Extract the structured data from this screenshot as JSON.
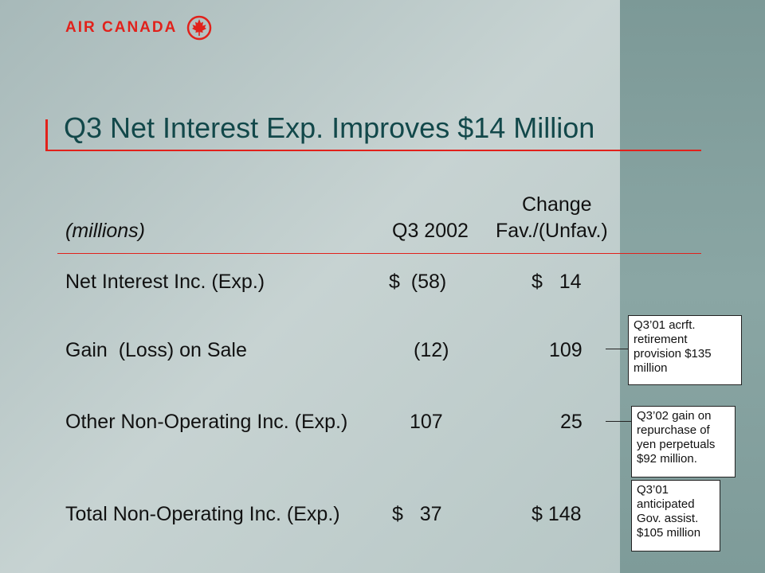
{
  "brand": {
    "name": "AIR CANADA"
  },
  "slide": {
    "title": "Q3 Net Interest Exp. Improves $14 Million"
  },
  "table": {
    "units_label": "(millions)",
    "col_q3": "Q3 2002",
    "col_change_line1": "Change",
    "col_change_line2": "Fav./(Unfav.)",
    "rows": [
      {
        "label": "Net Interest Inc. (Exp.)",
        "q3": "$  (58)",
        "change": "$   14"
      },
      {
        "label": "Gain  (Loss) on Sale",
        "q3": "(12)",
        "change": "109"
      },
      {
        "label": "Other Non-Operating Inc. (Exp.)",
        "q3": "107",
        "change": "25"
      },
      {
        "label": "Total Non-Operating Inc. (Exp.)",
        "q3": "$   37",
        "change": "$ 148"
      }
    ]
  },
  "notes": {
    "gain_note": [
      "Q3’01 acrft.",
      "retirement",
      "provision $135",
      "million"
    ],
    "other_note_a": [
      "Q3’02 gain on",
      "repurchase of",
      "yen perpetuals",
      "$92 million."
    ],
    "other_note_b": [
      "Q3’01",
      "anticipated",
      "Gov. assist.",
      "$105 million"
    ]
  }
}
